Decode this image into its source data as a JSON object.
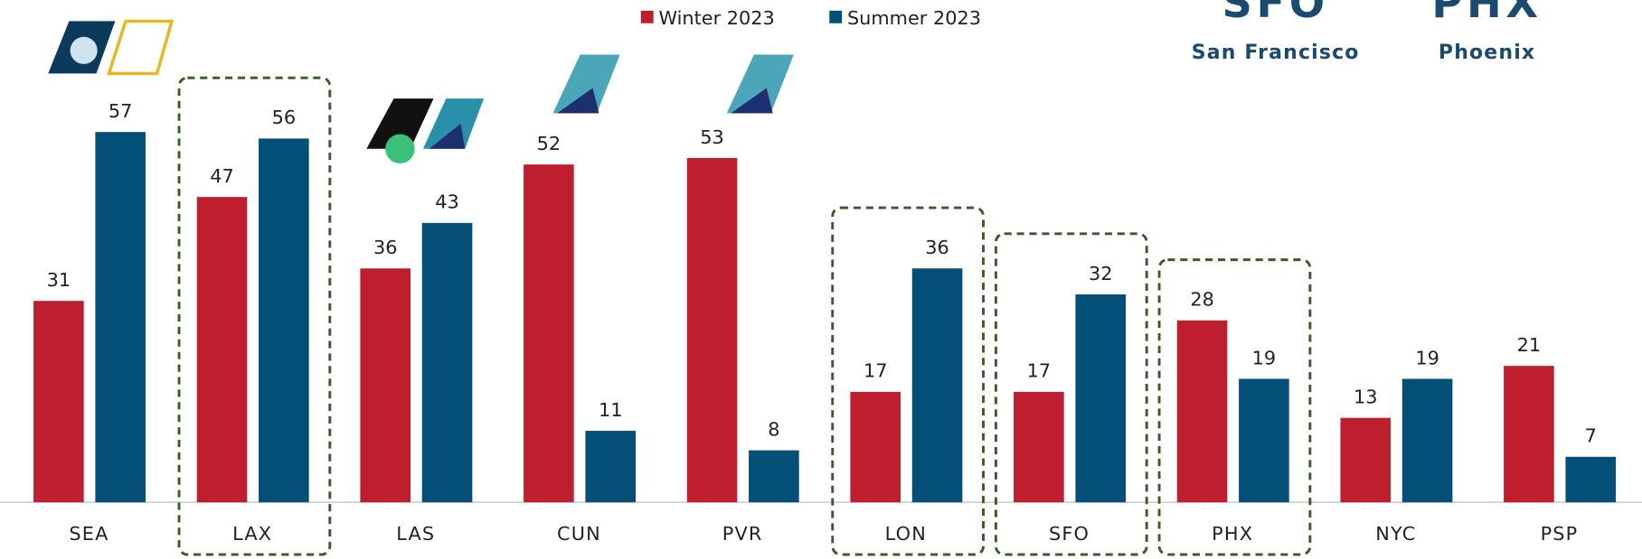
{
  "chart_data": {
    "type": "bar",
    "categories": [
      "SEA",
      "LAX",
      "LAS",
      "CUN",
      "PVR",
      "LON",
      "SFO",
      "PHX",
      "NYC",
      "PSP"
    ],
    "series": [
      {
        "name": "Winter 2023",
        "color": "#be1e2d",
        "values": [
          31,
          47,
          36,
          52,
          53,
          17,
          17,
          28,
          13,
          21
        ]
      },
      {
        "name": "Summer 2023",
        "color": "#034f77",
        "values": [
          57,
          56,
          43,
          11,
          8,
          36,
          32,
          19,
          19,
          7
        ]
      }
    ],
    "highlight": [
      false,
      true,
      false,
      false,
      false,
      true,
      true,
      true,
      false,
      false
    ],
    "grid": false,
    "callouts": [
      {
        "code": "SFO",
        "city": "San Francisco"
      },
      {
        "code": "PHX",
        "city": "Phoenix"
      }
    ]
  }
}
